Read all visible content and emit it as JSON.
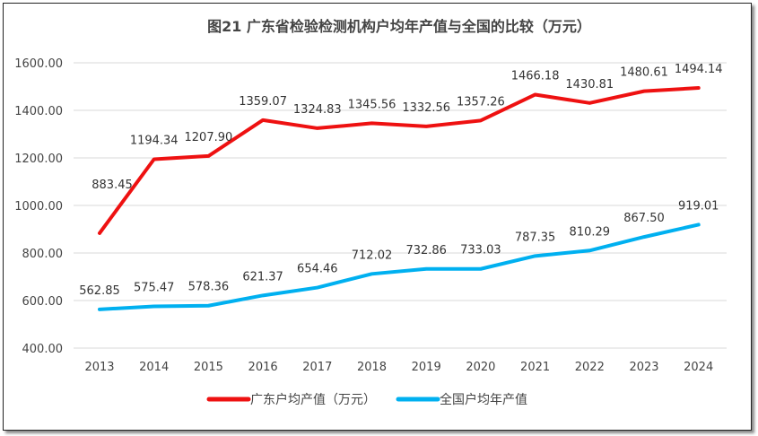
{
  "chart_data": {
    "type": "line",
    "title": "图21  广东省检验检测机构户均年产值与全国的比较（万元）",
    "xlabel": "",
    "ylabel": "",
    "categories": [
      "2013",
      "2014",
      "2015",
      "2016",
      "2017",
      "2018",
      "2019",
      "2020",
      "2021",
      "2022",
      "2023",
      "2024"
    ],
    "ylim": [
      400,
      1600
    ],
    "yticks": [
      "400.00",
      "600.00",
      "800.00",
      "1000.00",
      "1200.00",
      "1400.00",
      "1600.00"
    ],
    "grid": true,
    "legend_position": "bottom",
    "series": [
      {
        "name": "广东户均产值（万元）",
        "color": "#ee1111",
        "values": [
          883.45,
          1194.34,
          1207.9,
          1359.07,
          1324.83,
          1345.56,
          1332.56,
          1357.26,
          1466.18,
          1430.81,
          1480.61,
          1494.14
        ],
        "labels": [
          "883.45",
          "1194.34",
          "1207.90",
          "1359.07",
          "1324.83",
          "1345.56",
          "1332.56",
          "1357.26",
          "1466.18",
          "1430.81",
          "1480.61",
          "1494.14"
        ]
      },
      {
        "name": "全国户均年产值",
        "color": "#00b0f0",
        "values": [
          562.85,
          575.47,
          578.36,
          621.37,
          654.46,
          712.02,
          732.86,
          733.03,
          787.35,
          810.29,
          867.5,
          919.01
        ],
        "labels": [
          "562.85",
          "575.47",
          "578.36",
          "621.37",
          "654.46",
          "712.02",
          "732.86",
          "733.03",
          "787.35",
          "810.29",
          "867.50",
          "919.01"
        ]
      }
    ]
  }
}
